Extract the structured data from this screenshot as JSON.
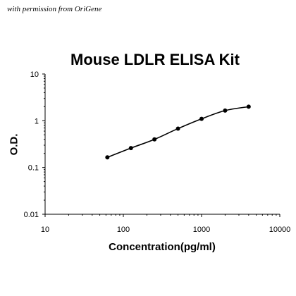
{
  "credit": "with permission from OriGene",
  "chart_data": {
    "type": "scatter",
    "title": "Mouse LDLR ELISA Kit",
    "xlabel": "Concentration(pg/ml)",
    "ylabel": "O.D.",
    "xscale": "log",
    "yscale": "log",
    "xlim": [
      10,
      10000
    ],
    "ylim": [
      0.01,
      10
    ],
    "xticks": [
      "10",
      "100",
      "1000",
      "10000"
    ],
    "yticks": [
      "0.01",
      "0.1",
      "1",
      "10"
    ],
    "grid": false,
    "legend": "none",
    "series": [
      {
        "x": [
          62.5,
          125,
          250,
          500,
          1000,
          2000,
          4000
        ],
        "y": [
          0.165,
          0.26,
          0.4,
          0.68,
          1.1,
          1.65,
          2.0
        ],
        "marker": "circle",
        "fit_line": "smooth curve"
      }
    ],
    "colors": {
      "marker": "#000000",
      "line": "#000000"
    }
  }
}
